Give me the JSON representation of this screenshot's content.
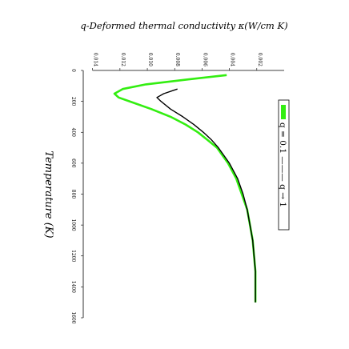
{
  "chart_data": {
    "type": "line",
    "title": "q-Deformed thermal conductivity κ(W/cm K)",
    "xlabel": "Temperature (K)",
    "ylabel": "",
    "xlim": [
      0,
      1600
    ],
    "ylim": [
      0,
      0.014
    ],
    "x_ticks": [
      0,
      200,
      400,
      600,
      800,
      1000,
      1200,
      1400,
      1600
    ],
    "y_ticks": [
      0.002,
      0.004,
      0.006,
      0.008,
      0.01,
      0.012,
      0.014
    ],
    "y_tick_labels": [
      "0.002",
      "0.004",
      "0.006",
      "0.008",
      "0.010",
      "0.012",
      "0.014"
    ],
    "legend_text": "q = 0.1 ——— q → 1",
    "series": [
      {
        "name": "q = 0.1",
        "color": "#33ee11",
        "points": [
          [
            30,
            0.0042
          ],
          [
            60,
            0.0072
          ],
          [
            90,
            0.0101
          ],
          [
            120,
            0.0118
          ],
          [
            150,
            0.0124
          ],
          [
            175,
            0.0121
          ],
          [
            200,
            0.0113
          ],
          [
            250,
            0.0097
          ],
          [
            300,
            0.0083
          ],
          [
            350,
            0.0072
          ],
          [
            400,
            0.0063
          ],
          [
            450,
            0.0056
          ],
          [
            500,
            0.0049
          ],
          [
            600,
            0.0041
          ],
          [
            700,
            0.0035
          ],
          [
            800,
            0.0031
          ],
          [
            900,
            0.0027
          ],
          [
            1000,
            0.0025
          ],
          [
            1100,
            0.0023
          ],
          [
            1200,
            0.0022
          ],
          [
            1300,
            0.0021
          ],
          [
            1400,
            0.0021
          ],
          [
            1500,
            0.0021
          ]
        ]
      },
      {
        "name": "q → 1",
        "color": "#000000",
        "points": [
          [
            120,
            0.0078
          ],
          [
            150,
            0.0088
          ],
          [
            175,
            0.0093
          ],
          [
            200,
            0.009
          ],
          [
            250,
            0.0083
          ],
          [
            300,
            0.0074
          ],
          [
            350,
            0.0066
          ],
          [
            400,
            0.0059
          ],
          [
            450,
            0.0053
          ],
          [
            500,
            0.0048
          ],
          [
            600,
            0.004
          ],
          [
            700,
            0.0034
          ],
          [
            800,
            0.003
          ],
          [
            900,
            0.0027
          ],
          [
            1000,
            0.0025
          ],
          [
            1100,
            0.0023
          ],
          [
            1200,
            0.0022
          ],
          [
            1300,
            0.0021
          ],
          [
            1400,
            0.0021
          ],
          [
            1500,
            0.0021
          ]
        ]
      }
    ]
  }
}
